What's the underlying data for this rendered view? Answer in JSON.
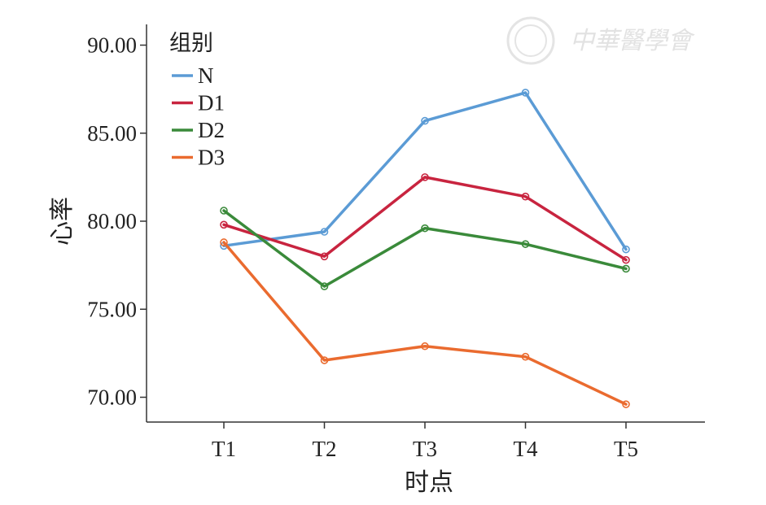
{
  "watermark": {
    "text": "中華醫學會"
  },
  "chart_data": {
    "type": "line",
    "categories": [
      "T1",
      "T2",
      "T3",
      "T4",
      "T5"
    ],
    "xlabel": "时点",
    "ylabel": "心率",
    "ylim": [
      68.5,
      90.8
    ],
    "yticks": [
      "70.00",
      "75.00",
      "80.00",
      "85.00",
      "90.00"
    ],
    "ytick_values": [
      70,
      75,
      80,
      85,
      90
    ],
    "legend": {
      "title": "组别",
      "position": "top-left"
    },
    "grid": false,
    "series": [
      {
        "name": "N",
        "color": "#5b9bd5",
        "values": [
          78.6,
          79.4,
          85.7,
          87.3,
          78.4
        ]
      },
      {
        "name": "D1",
        "color": "#c8243f",
        "values": [
          79.8,
          78.0,
          82.5,
          81.4,
          77.8
        ]
      },
      {
        "name": "D2",
        "color": "#3a8a3a",
        "values": [
          80.6,
          76.3,
          79.6,
          78.7,
          77.3
        ]
      },
      {
        "name": "D3",
        "color": "#ea6b2f",
        "values": [
          78.8,
          72.1,
          72.9,
          72.3,
          69.6
        ]
      }
    ]
  }
}
